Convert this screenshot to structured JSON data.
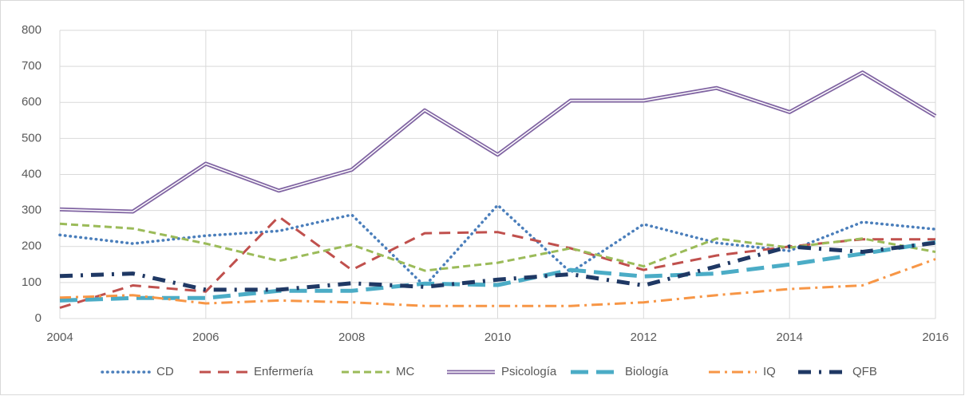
{
  "chart_data": {
    "type": "line",
    "x": [
      2004,
      2005,
      2006,
      2007,
      2008,
      2009,
      2010,
      2011,
      2012,
      2013,
      2014,
      2015,
      2016
    ],
    "xlim": [
      2004,
      2016
    ],
    "xticks": [
      2004,
      2006,
      2008,
      2010,
      2012,
      2014,
      2016
    ],
    "ylim": [
      0,
      800
    ],
    "yticks": [
      0,
      100,
      200,
      300,
      400,
      500,
      600,
      700,
      800
    ],
    "grid": true,
    "legend": "bottom",
    "series": [
      {
        "name": "CD",
        "color": "#4a7ebb",
        "values": [
          232,
          208,
          230,
          243,
          288,
          90,
          315,
          128,
          262,
          210,
          188,
          268,
          248
        ]
      },
      {
        "name": "Enfermería",
        "color": "#c0504d",
        "values": [
          30,
          92,
          75,
          283,
          135,
          237,
          240,
          195,
          135,
          175,
          200,
          220,
          220
        ]
      },
      {
        "name": "MC",
        "color": "#9bbb59",
        "values": [
          263,
          250,
          208,
          160,
          205,
          133,
          155,
          195,
          145,
          222,
          197,
          222,
          185
        ]
      },
      {
        "name": "Psicología",
        "color": "#8064a2",
        "values": [
          303,
          297,
          430,
          355,
          413,
          578,
          455,
          605,
          605,
          640,
          573,
          683,
          562
        ]
      },
      {
        "name": "Biología",
        "color": "#4bacc6",
        "values": [
          50,
          57,
          57,
          77,
          77,
          97,
          93,
          135,
          117,
          125,
          150,
          180,
          212
        ]
      },
      {
        "name": "IQ",
        "color": "#f79646",
        "values": [
          58,
          65,
          42,
          50,
          45,
          35,
          35,
          35,
          45,
          65,
          82,
          92,
          165
        ]
      },
      {
        "name": "QFB",
        "color": "#1f3864",
        "values": [
          118,
          125,
          80,
          80,
          98,
          88,
          108,
          123,
          92,
          145,
          200,
          185,
          210
        ]
      }
    ]
  }
}
